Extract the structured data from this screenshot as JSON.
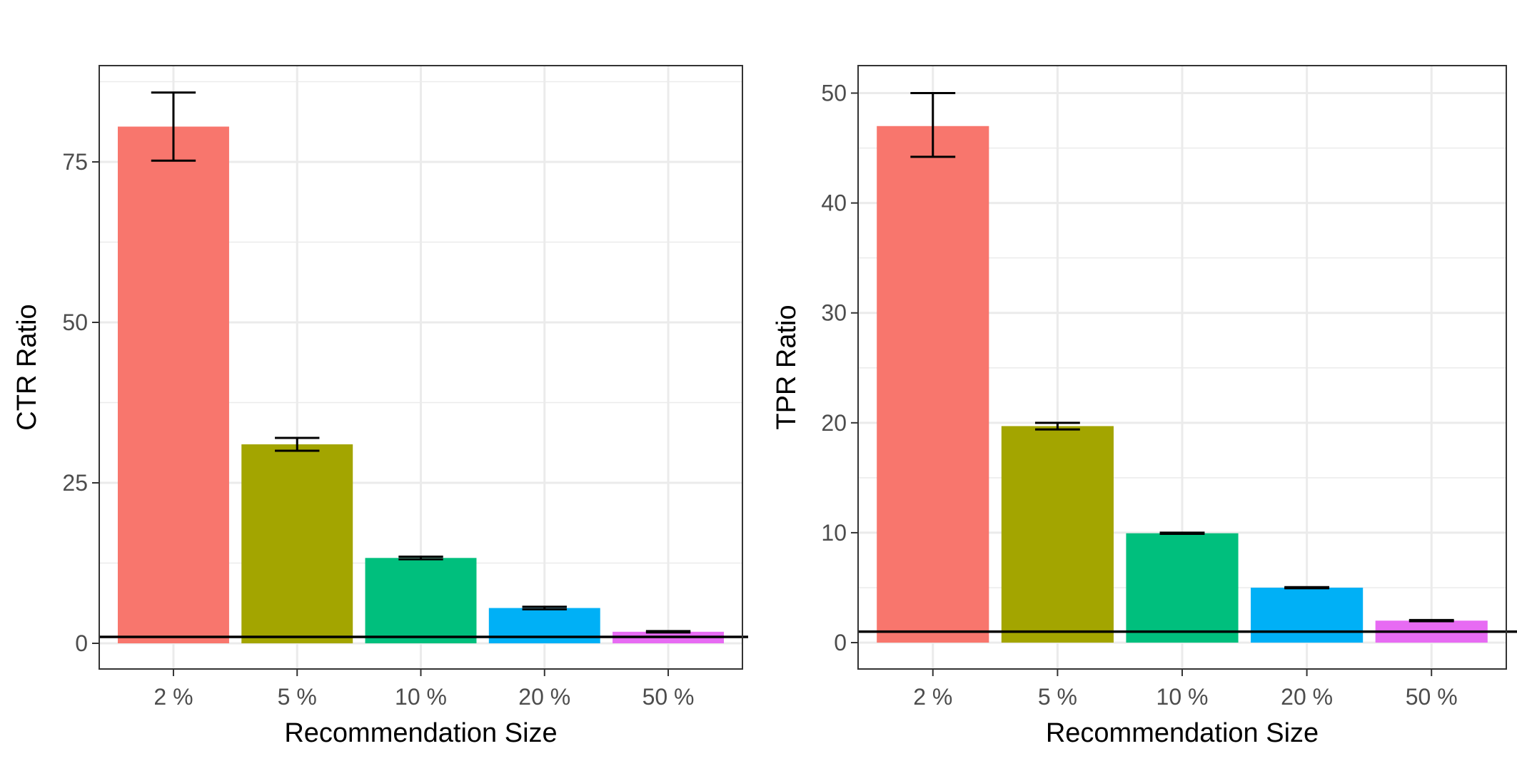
{
  "chart_data": [
    {
      "type": "bar",
      "categories": [
        "2 %",
        "5 %",
        "10 %",
        "20 %",
        "50 %"
      ],
      "values": [
        80.5,
        31.0,
        13.3,
        5.5,
        1.8
      ],
      "error_low": [
        75.2,
        30.0,
        13.1,
        5.3,
        1.7
      ],
      "error_high": [
        85.8,
        32.0,
        13.5,
        5.7,
        1.9
      ],
      "colors": [
        "#F8766D",
        "#A3A500",
        "#00BF7D",
        "#00B0F6",
        "#E76BF3"
      ],
      "reference_line": 1,
      "xlabel": "Recommendation Size",
      "ylabel": "CTR Ratio",
      "ylim": [
        -4,
        90
      ],
      "yticks": [
        0,
        25,
        50,
        75
      ],
      "ytick_labels": [
        "0",
        "25",
        "50",
        "75"
      ],
      "grid": true,
      "legend": "none"
    },
    {
      "type": "bar",
      "categories": [
        "2 %",
        "5 %",
        "10 %",
        "20 %",
        "50 %"
      ],
      "values": [
        47.0,
        19.7,
        9.95,
        5.0,
        2.0
      ],
      "error_low": [
        44.2,
        19.4,
        9.9,
        4.95,
        1.95
      ],
      "error_high": [
        50.0,
        20.0,
        10.0,
        5.05,
        2.05
      ],
      "colors": [
        "#F8766D",
        "#A3A500",
        "#00BF7D",
        "#00B0F6",
        "#E76BF3"
      ],
      "reference_line": 1,
      "xlabel": "Recommendation Size",
      "ylabel": "TPR Ratio",
      "ylim": [
        -2.4,
        52.5
      ],
      "yticks": [
        0,
        10,
        20,
        30,
        40,
        50
      ],
      "ytick_labels": [
        "0",
        "10",
        "20",
        "30",
        "40",
        "50"
      ],
      "grid": true,
      "legend": "none"
    }
  ]
}
